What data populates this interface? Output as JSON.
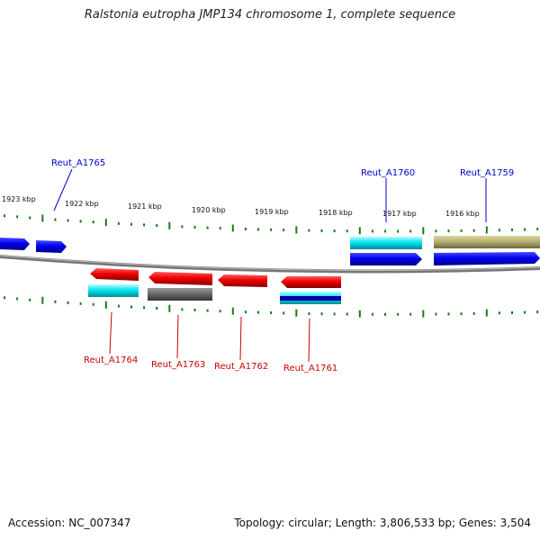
{
  "title": "Ralstonia eutropha JMP134 chromosome 1, complete sequence",
  "footer": {
    "accession": "Accession: NC_007347",
    "stats": "Topology: circular; Length: 3,806,533 bp; Genes: 3,504"
  },
  "scale_labels": [
    "1923 kbp",
    "1922 kbp",
    "1921 kbp",
    "1920 kbp",
    "1919 kbp",
    "1918 kbp",
    "1917 kbp",
    "1916 kbp"
  ],
  "genes": [
    {
      "id": "Reut_A1765",
      "strand": "forward",
      "color": "#0000cc"
    },
    {
      "id": "Reut_A1760",
      "strand": "forward",
      "color": "#0000cc"
    },
    {
      "id": "Reut_A1759",
      "strand": "forward",
      "color": "#0000cc"
    },
    {
      "id": "Reut_A1764",
      "strand": "reverse",
      "color": "#cc0000"
    },
    {
      "id": "Reut_A1763",
      "strand": "reverse",
      "color": "#cc0000"
    },
    {
      "id": "Reut_A1762",
      "strand": "reverse",
      "color": "#cc0000"
    },
    {
      "id": "Reut_A1761",
      "strand": "reverse",
      "color": "#cc0000"
    }
  ],
  "colors": {
    "forward_gene": "#0000ee",
    "reverse_gene": "#ee0000",
    "cyan_feature": "#00e5f0",
    "grey_feature": "#666666",
    "olive_feature": "#b3aa6e",
    "backbone": "#888888",
    "tick": "#1a7a1a"
  }
}
